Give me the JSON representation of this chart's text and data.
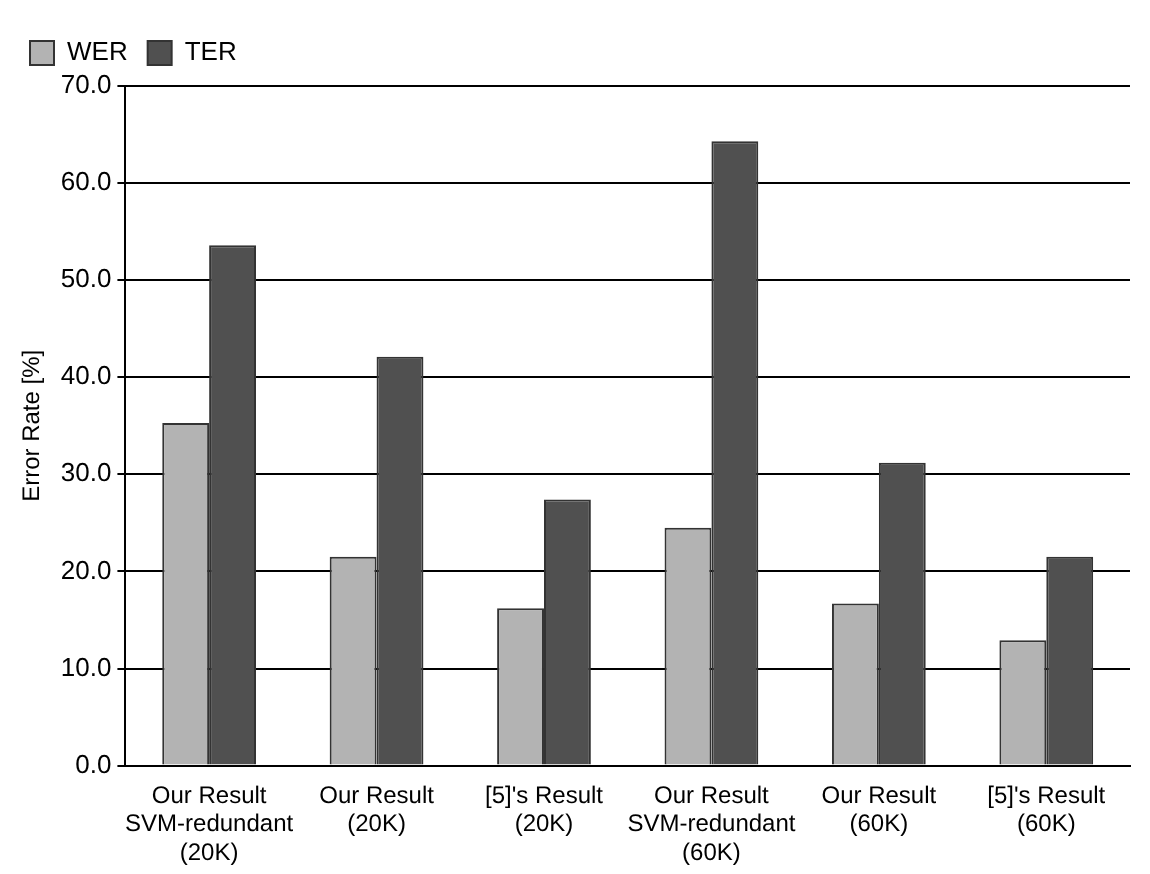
{
  "chart_data": {
    "type": "bar",
    "ylabel": "Error Rate [%]",
    "categories": [
      "Our Result SVM-redundant (20K)",
      "Our Result (20K)",
      "[5]'s Result (20K)",
      "Our Result SVM-redundant (60K)",
      "Our Result (60K)",
      "[5]'s Result (60K)"
    ],
    "series": [
      {
        "name": "WER",
        "color": "#b3b3b3",
        "values": [
          35.3,
          21.5,
          16.2,
          24.5,
          16.7,
          12.9
        ]
      },
      {
        "name": "TER",
        "color": "#505050",
        "values": [
          53.6,
          42.1,
          27.4,
          64.3,
          31.2,
          21.5
        ]
      }
    ],
    "ylim": [
      0,
      70
    ],
    "yticks": [
      {
        "value": 0,
        "label": "0.0"
      },
      {
        "value": 10,
        "label": "10.0"
      },
      {
        "value": 20,
        "label": "20.0"
      },
      {
        "value": 30,
        "label": "30.0"
      },
      {
        "value": 40,
        "label": "40.0"
      },
      {
        "value": 50,
        "label": "50.0"
      },
      {
        "value": 60,
        "label": "60.0"
      },
      {
        "value": 70,
        "label": "70.0"
      }
    ],
    "grid": "y",
    "legend": "top left"
  }
}
